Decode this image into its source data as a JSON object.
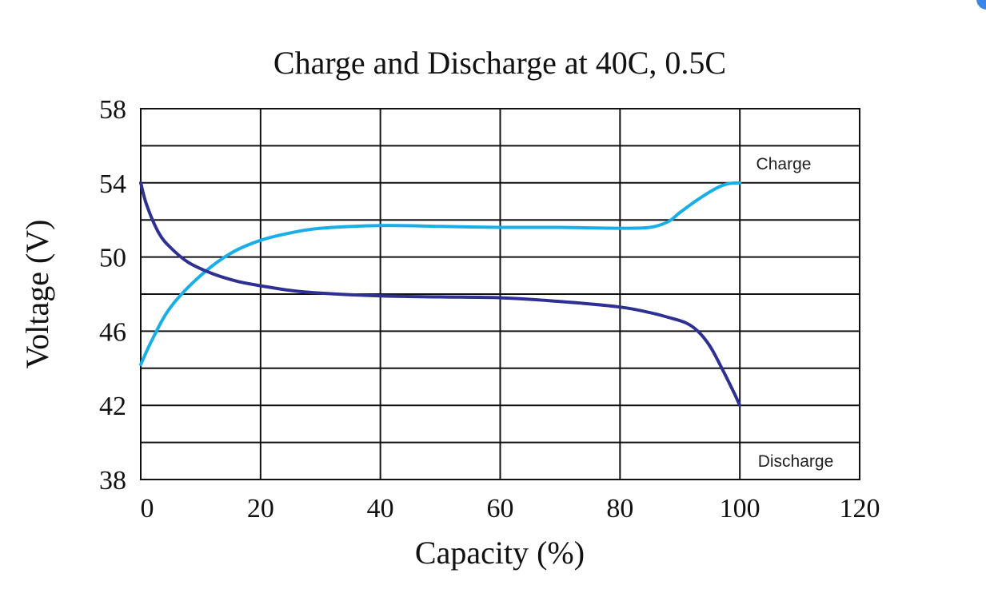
{
  "chart_data": {
    "type": "line",
    "title": "Charge and Discharge at 40C, 0.5C",
    "xlabel": "Capacity (%)",
    "ylabel": "Voltage (V)",
    "xlim": [
      0,
      120
    ],
    "ylim": [
      38,
      58
    ],
    "xticks": [
      0,
      20,
      40,
      60,
      80,
      100,
      120
    ],
    "yticks": [
      38,
      42,
      46,
      50,
      54,
      58
    ],
    "grid": true,
    "series": [
      {
        "name": "Charge",
        "color": "#1aaee6",
        "x": [
          0,
          2,
          5,
          10,
          15,
          20,
          25,
          30,
          40,
          50,
          60,
          70,
          80,
          85,
          88,
          90,
          93,
          96,
          98,
          100
        ],
        "y": [
          44.2,
          45.6,
          47.3,
          49.0,
          50.2,
          50.9,
          51.3,
          51.55,
          51.7,
          51.65,
          51.6,
          51.6,
          51.55,
          51.6,
          51.9,
          52.4,
          53.1,
          53.7,
          53.95,
          54.0
        ]
      },
      {
        "name": "Discharge",
        "color": "#2e3192",
        "x": [
          0,
          1,
          3,
          5,
          8,
          12,
          16,
          20,
          25,
          30,
          40,
          50,
          60,
          70,
          80,
          85,
          88,
          91,
          93,
          95,
          97,
          99,
          100
        ],
        "y": [
          54.0,
          52.8,
          51.3,
          50.5,
          49.7,
          49.1,
          48.7,
          48.45,
          48.2,
          48.05,
          47.9,
          47.85,
          47.8,
          47.6,
          47.3,
          47.0,
          46.75,
          46.45,
          46.0,
          45.2,
          44.0,
          42.7,
          42.0
        ]
      }
    ]
  }
}
